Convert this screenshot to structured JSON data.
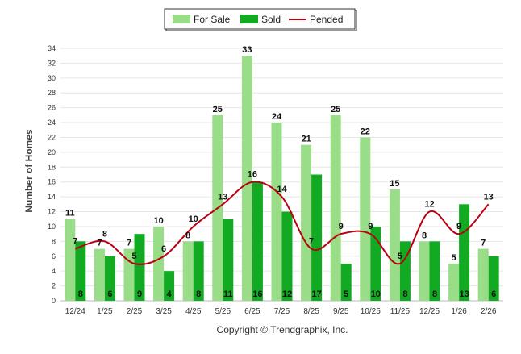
{
  "chart_data": {
    "type": "bar",
    "ylabel": "Number of Homes",
    "xlabel": "",
    "ylim": [
      0,
      34
    ],
    "yticks": [
      0,
      2,
      4,
      6,
      8,
      10,
      12,
      14,
      16,
      18,
      20,
      22,
      24,
      26,
      28,
      30,
      32,
      34
    ],
    "grid": true,
    "legend_position": "top-center",
    "categories": [
      "12/24",
      "1/25",
      "2/25",
      "3/25",
      "4/25",
      "5/25",
      "6/25",
      "7/25",
      "8/25",
      "9/25",
      "10/25",
      "11/25",
      "12/25",
      "1/26",
      "2/26"
    ],
    "series": [
      {
        "name": "For Sale",
        "type": "bar",
        "color": "#99dd88",
        "values": [
          11,
          7,
          7,
          10,
          8,
          25,
          33,
          24,
          21,
          25,
          22,
          15,
          8,
          5,
          7
        ]
      },
      {
        "name": "Sold",
        "type": "bar",
        "color": "#11aa22",
        "values": [
          8,
          6,
          9,
          4,
          8,
          11,
          16,
          12,
          17,
          5,
          10,
          8,
          8,
          13,
          6
        ]
      },
      {
        "name": "Pended",
        "type": "line",
        "color": "#bb0011",
        "values": [
          7,
          8,
          5,
          6,
          10,
          13,
          16,
          14,
          7,
          9,
          9,
          5,
          12,
          9,
          13
        ]
      }
    ]
  },
  "footer": {
    "copyright": "Copyright © Trendgraphix, Inc."
  }
}
